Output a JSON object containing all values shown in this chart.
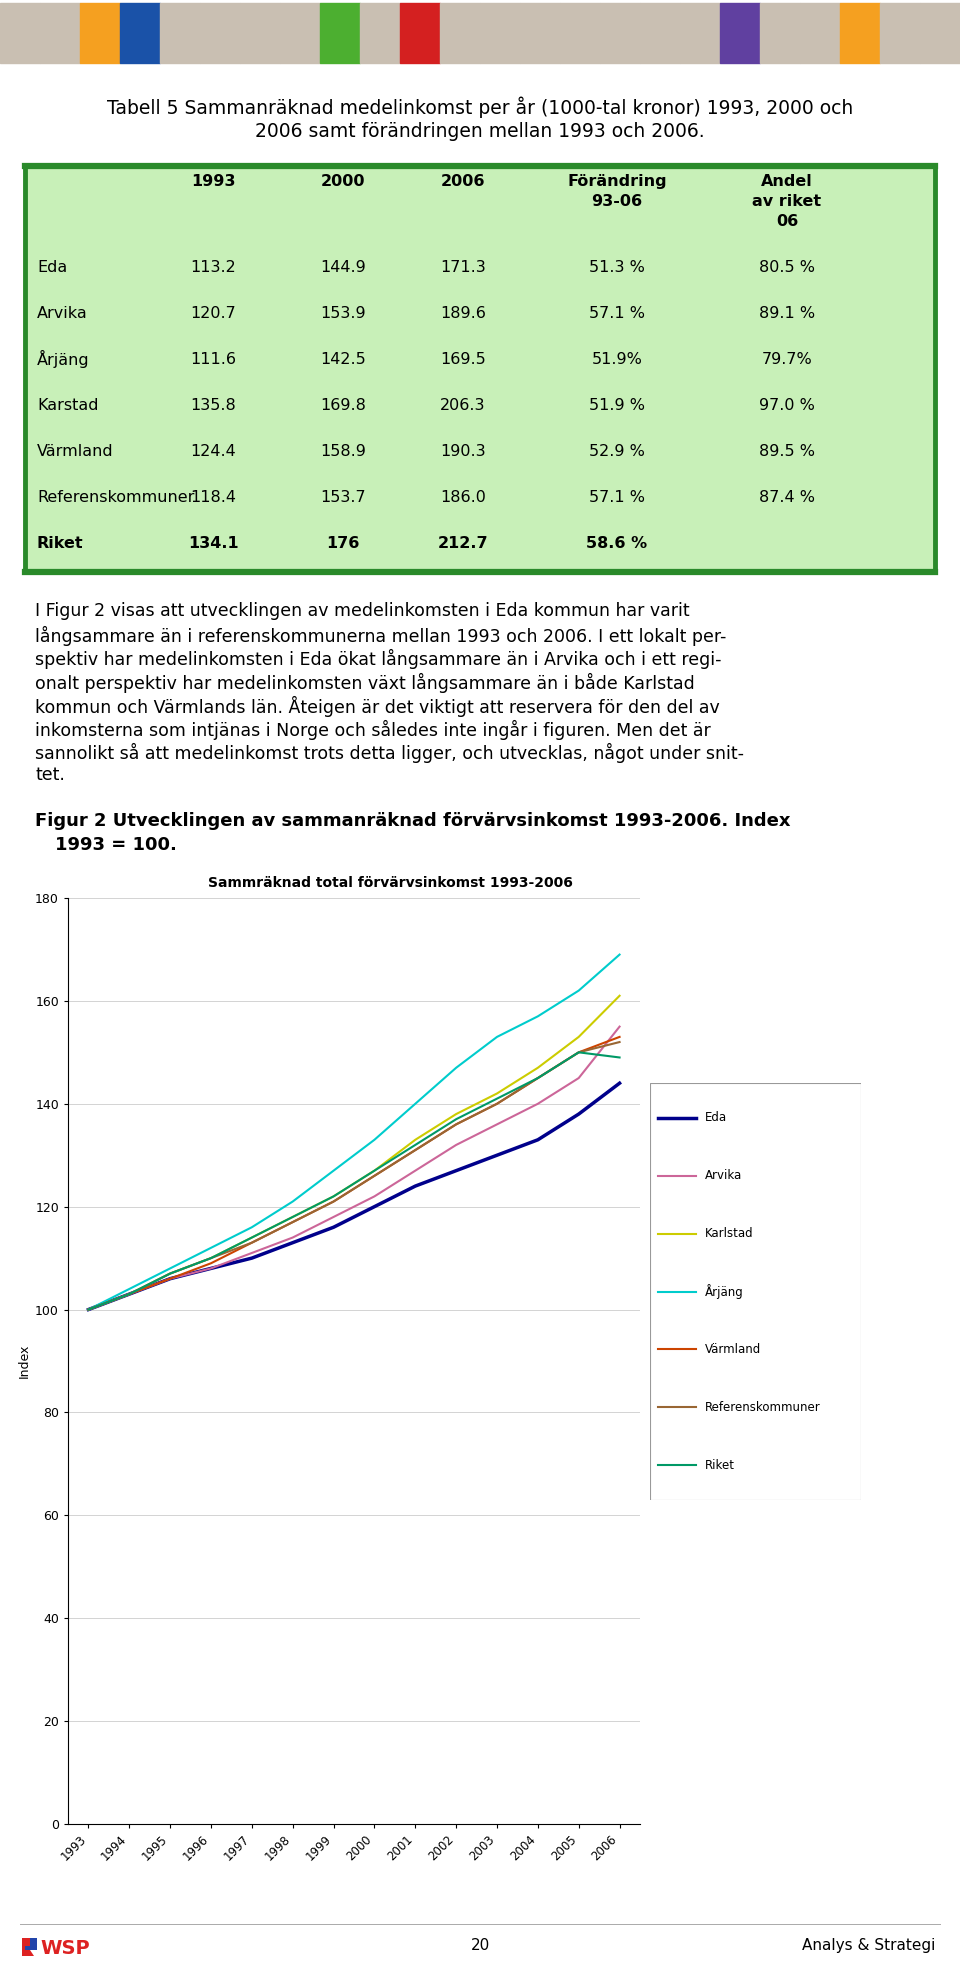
{
  "page_bg": "#ffffff",
  "header_tile_colors": [
    "#c9bfb2",
    "#c9bfb2",
    "#f5a020",
    "#1a52a8",
    "#c9bfb2",
    "#c9bfb2",
    "#c9bfb2",
    "#c9bfb2",
    "#4caf30",
    "#c9bfb2",
    "#d42020",
    "#c9bfb2",
    "#c9bfb2",
    "#c9bfb2",
    "#c9bfb2",
    "#c9bfb2",
    "#c9bfb2",
    "#c9bfb2",
    "#6040a0",
    "#c9bfb2",
    "#c9bfb2",
    "#f5a020",
    "#c9bfb2",
    "#c9bfb2"
  ],
  "table_title_line1": "Tabell 5 Sammanräknad medelinkomst per år (1000-tal kronor) 1993, 2000 och",
  "table_title_line2": "2006 samt förändringen mellan 1993 och 2006.",
  "table_bg": "#c8f0b8",
  "table_border_color": "#2a8a2a",
  "col_headers": [
    "",
    "1993",
    "2000",
    "2006",
    "Förändring\n93-06",
    "Andel\nav riket\n06"
  ],
  "rows": [
    [
      "Eda",
      "113.2",
      "144.9",
      "171.3",
      "51.3 %",
      "80.5 %"
    ],
    [
      "Arvika",
      "120.7",
      "153.9",
      "189.6",
      "57.1 %",
      "89.1 %"
    ],
    [
      "Årjäng",
      "111.6",
      "142.5",
      "169.5",
      "51.9%",
      "79.7%"
    ],
    [
      "Karstad",
      "135.8",
      "169.8",
      "206.3",
      "51.9 %",
      "97.0 %"
    ],
    [
      "Värmland",
      "124.4",
      "158.9",
      "190.3",
      "52.9 %",
      "89.5 %"
    ],
    [
      "Referenskommuner",
      "118.4",
      "153.7",
      "186.0",
      "57.1 %",
      "87.4 %"
    ],
    [
      "Riket",
      "134.1",
      "176",
      "212.7",
      "58.6 %",
      ""
    ]
  ],
  "bold_rows": [
    6
  ],
  "para_lines": [
    "I Figur 2 visas att utvecklingen av medelinkomsten i Eda kommun har varit",
    "långsammare än i referenskommunerna mellan 1993 och 2006. I ett lokalt per-",
    "spektiv har medelinkomsten i Eda ökat långsammare än i Arvika och i ett regi-",
    "onalt perspektiv har medelinkomsten växt långsammare än i både Karlstad",
    "kommun och Värmlands län. Åteigen är det viktigt att reservera för den del av",
    "inkomsterna som intjänas i Norge och således inte ingår i figuren. Men det är",
    "sannolikt så att medelinkomst trots detta ligger, och utvecklas, något under snit-",
    "tet."
  ],
  "fig_caption_line1": "Figur 2 Utvecklingen av sammanräknad förvärvsinkomst 1993-2006. Index",
  "fig_caption_line2": "        1993 = 100.",
  "chart_title": "Sammräknad total förvärvsinkomst 1993-2006",
  "chart_ylabel": "Index",
  "chart_ylim": [
    0,
    180
  ],
  "chart_yticks": [
    0,
    20,
    40,
    60,
    80,
    100,
    120,
    140,
    160,
    180
  ],
  "years": [
    1993,
    1994,
    1995,
    1996,
    1997,
    1998,
    1999,
    2000,
    2001,
    2002,
    2003,
    2004,
    2005,
    2006
  ],
  "series": {
    "Eda": [
      100,
      103,
      106,
      108,
      110,
      113,
      116,
      120,
      124,
      127,
      130,
      133,
      138,
      144
    ],
    "Arvika": [
      100,
      103,
      106,
      108,
      111,
      114,
      118,
      122,
      127,
      132,
      136,
      140,
      145,
      155
    ],
    "Karlstad": [
      100,
      103,
      107,
      110,
      114,
      118,
      122,
      127,
      133,
      138,
      142,
      147,
      153,
      161
    ],
    "Årjäng": [
      100,
      104,
      108,
      112,
      116,
      121,
      127,
      133,
      140,
      147,
      153,
      157,
      162,
      169
    ],
    "Värmland": [
      100,
      103,
      106,
      109,
      113,
      117,
      121,
      126,
      131,
      136,
      140,
      145,
      150,
      153
    ],
    "Referenskommuner": [
      100,
      103,
      107,
      110,
      113,
      117,
      121,
      126,
      131,
      136,
      140,
      145,
      150,
      152
    ],
    "Riket": [
      100,
      103,
      107,
      110,
      114,
      118,
      122,
      127,
      132,
      137,
      141,
      145,
      150,
      149
    ]
  },
  "line_colors": {
    "Eda": "#00008b",
    "Arvika": "#cc6699",
    "Karlstad": "#cccc00",
    "Årjäng": "#00cccc",
    "Värmland": "#cc4400",
    "Referenskommuner": "#996633",
    "Riket": "#009966"
  },
  "line_widths": {
    "Eda": 2.5,
    "Arvika": 1.5,
    "Karlstad": 1.5,
    "Årjäng": 1.5,
    "Värmland": 1.5,
    "Referenskommuner": 1.5,
    "Riket": 1.5
  },
  "footer_page": "20",
  "footer_right": "Analys & Strategi"
}
